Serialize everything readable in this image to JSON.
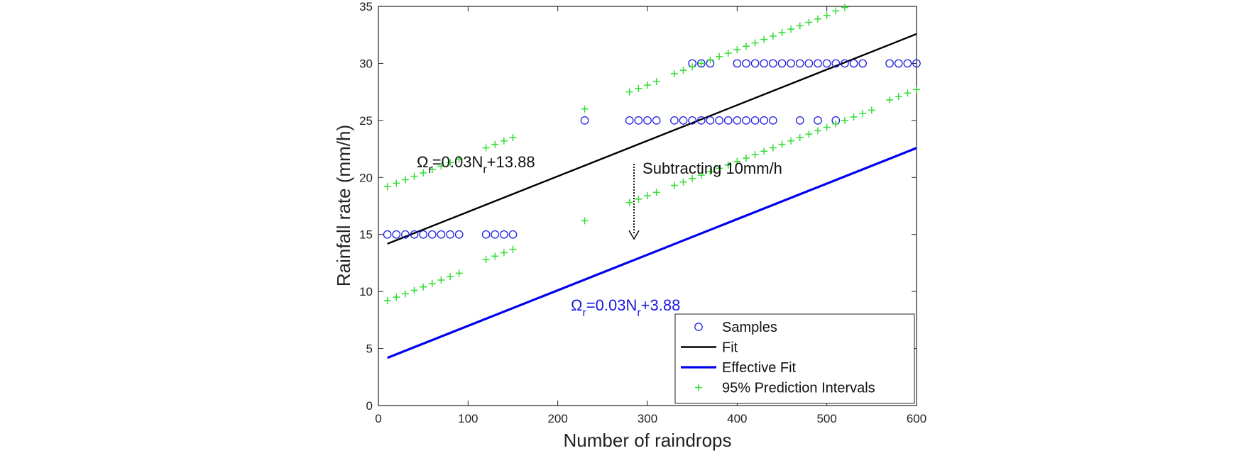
{
  "chart_data": {
    "type": "scatter",
    "xlabel": "Number of raindrops",
    "ylabel": "Rainfall rate (mm/h)",
    "xlim": [
      0,
      600
    ],
    "ylim": [
      0,
      35
    ],
    "xticks": [
      0,
      100,
      200,
      300,
      400,
      500,
      600
    ],
    "yticks": [
      0,
      5,
      10,
      15,
      20,
      25,
      30,
      35
    ],
    "grid": false,
    "legend_position": "bottom-right",
    "series": [
      {
        "name": "Samples",
        "kind": "marker-circle",
        "color": "#1f1fe0",
        "points": [
          [
            10,
            15
          ],
          [
            20,
            15
          ],
          [
            30,
            15
          ],
          [
            40,
            15
          ],
          [
            50,
            15
          ],
          [
            60,
            15
          ],
          [
            70,
            15
          ],
          [
            80,
            15
          ],
          [
            90,
            15
          ],
          [
            120,
            15
          ],
          [
            130,
            15
          ],
          [
            140,
            15
          ],
          [
            150,
            15
          ],
          [
            230,
            25
          ],
          [
            280,
            25
          ],
          [
            290,
            25
          ],
          [
            300,
            25
          ],
          [
            310,
            25
          ],
          [
            330,
            25
          ],
          [
            340,
            25
          ],
          [
            350,
            25
          ],
          [
            360,
            25
          ],
          [
            370,
            25
          ],
          [
            380,
            25
          ],
          [
            390,
            25
          ],
          [
            400,
            25
          ],
          [
            410,
            25
          ],
          [
            420,
            25
          ],
          [
            430,
            25
          ],
          [
            440,
            25
          ],
          [
            470,
            25
          ],
          [
            490,
            25
          ],
          [
            510,
            25
          ],
          [
            350,
            30
          ],
          [
            360,
            30
          ],
          [
            370,
            30
          ],
          [
            400,
            30
          ],
          [
            410,
            30
          ],
          [
            420,
            30
          ],
          [
            430,
            30
          ],
          [
            440,
            30
          ],
          [
            450,
            30
          ],
          [
            460,
            30
          ],
          [
            470,
            30
          ],
          [
            480,
            30
          ],
          [
            490,
            30
          ],
          [
            500,
            30
          ],
          [
            510,
            30
          ],
          [
            520,
            30
          ],
          [
            530,
            30
          ],
          [
            540,
            30
          ],
          [
            570,
            30
          ],
          [
            580,
            30
          ],
          [
            590,
            30
          ],
          [
            600,
            30
          ]
        ]
      },
      {
        "name": "Fit",
        "kind": "line",
        "color": "#000000",
        "x": [
          10,
          600
        ],
        "y": [
          14.18,
          32.58
        ]
      },
      {
        "name": "Effective Fit",
        "kind": "line",
        "color": "#0000ee",
        "x": [
          10,
          600
        ],
        "y": [
          4.18,
          22.58
        ]
      },
      {
        "name": "95% Prediction Intervals",
        "kind": "marker-plus",
        "color": "#33dd33",
        "points": [
          [
            10,
            19.2
          ],
          [
            20,
            19.5
          ],
          [
            30,
            19.8
          ],
          [
            40,
            20.1
          ],
          [
            50,
            20.4
          ],
          [
            60,
            20.7
          ],
          [
            70,
            21.0
          ],
          [
            80,
            21.3
          ],
          [
            90,
            21.6
          ],
          [
            120,
            22.6
          ],
          [
            130,
            22.9
          ],
          [
            140,
            23.2
          ],
          [
            150,
            23.5
          ],
          [
            230,
            26.0
          ],
          [
            280,
            27.5
          ],
          [
            290,
            27.8
          ],
          [
            300,
            28.1
          ],
          [
            310,
            28.4
          ],
          [
            330,
            29.1
          ],
          [
            340,
            29.4
          ],
          [
            350,
            29.7
          ],
          [
            360,
            30.0
          ],
          [
            370,
            30.3
          ],
          [
            380,
            30.6
          ],
          [
            390,
            30.9
          ],
          [
            400,
            31.2
          ],
          [
            410,
            31.5
          ],
          [
            420,
            31.8
          ],
          [
            430,
            32.1
          ],
          [
            440,
            32.4
          ],
          [
            450,
            32.7
          ],
          [
            460,
            33.0
          ],
          [
            470,
            33.3
          ],
          [
            480,
            33.6
          ],
          [
            490,
            33.9
          ],
          [
            500,
            34.2
          ],
          [
            510,
            34.6
          ],
          [
            520,
            34.9
          ],
          [
            10,
            9.2
          ],
          [
            20,
            9.5
          ],
          [
            30,
            9.8
          ],
          [
            40,
            10.1
          ],
          [
            50,
            10.4
          ],
          [
            60,
            10.7
          ],
          [
            70,
            11.0
          ],
          [
            80,
            11.3
          ],
          [
            90,
            11.6
          ],
          [
            120,
            12.8
          ],
          [
            130,
            13.1
          ],
          [
            140,
            13.4
          ],
          [
            150,
            13.7
          ],
          [
            230,
            16.2
          ],
          [
            280,
            17.8
          ],
          [
            290,
            18.1
          ],
          [
            300,
            18.4
          ],
          [
            310,
            18.7
          ],
          [
            330,
            19.3
          ],
          [
            340,
            19.6
          ],
          [
            350,
            19.9
          ],
          [
            360,
            20.2
          ],
          [
            370,
            20.5
          ],
          [
            380,
            20.8
          ],
          [
            390,
            21.1
          ],
          [
            400,
            21.4
          ],
          [
            410,
            21.7
          ],
          [
            420,
            22.0
          ],
          [
            430,
            22.3
          ],
          [
            440,
            22.6
          ],
          [
            450,
            22.9
          ],
          [
            460,
            23.2
          ],
          [
            470,
            23.5
          ],
          [
            480,
            23.8
          ],
          [
            490,
            24.1
          ],
          [
            500,
            24.4
          ],
          [
            510,
            24.7
          ],
          [
            520,
            25.0
          ],
          [
            530,
            25.3
          ],
          [
            540,
            25.6
          ],
          [
            550,
            25.9
          ],
          [
            570,
            26.8
          ],
          [
            580,
            27.1
          ],
          [
            590,
            27.4
          ],
          [
            600,
            27.7
          ]
        ]
      }
    ],
    "annotations": {
      "fit_equation": {
        "omega": "Ω",
        "sub_r": "r",
        "rhs": "=0.03N",
        "sub_r2": "r",
        "tail": "+13.88"
      },
      "effective_equation": {
        "omega": "Ω",
        "sub_r": "r",
        "rhs": "=0.03N",
        "sub_r2": "r",
        "tail": "+3.88"
      },
      "shift_label": "Subtracting 10mm/h",
      "shift_arrow": {
        "x": 285,
        "y_from": 21.2,
        "y_to": 14.6
      }
    }
  }
}
